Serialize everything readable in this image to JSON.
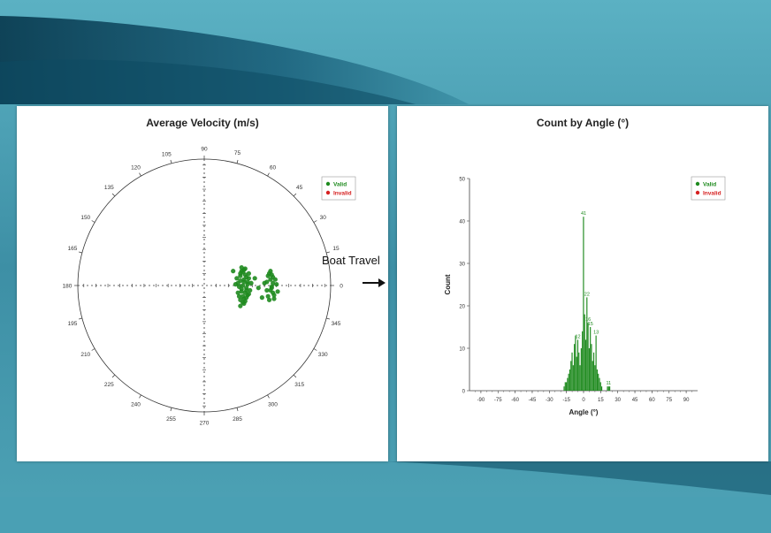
{
  "colors": {
    "valid": "#1e8a1e",
    "invalid": "#d62020",
    "background": "#4a9bb0"
  },
  "annotation": {
    "boat_travel": "Boat Travel"
  },
  "chart_data": [
    {
      "type": "scatter",
      "title": "Average Velocity (m/s)",
      "coordinate_system": "polar",
      "grid": true,
      "legend": {
        "position": "top-right",
        "entries": [
          "Valid",
          "Invalid"
        ]
      },
      "angle_labels": [
        {
          "deg": 0,
          "text": "90"
        },
        {
          "deg": 14,
          "text": "75"
        },
        {
          "deg": 30,
          "text": "60"
        },
        {
          "deg": 44,
          "text": "45"
        },
        {
          "deg": 60,
          "text": "30"
        },
        {
          "deg": 74,
          "text": "15"
        },
        {
          "deg": 90,
          "text": "0"
        },
        {
          "deg": 106,
          "text": "345"
        },
        {
          "deg": 120,
          "text": "330"
        },
        {
          "deg": 136,
          "text": "315"
        },
        {
          "deg": 150,
          "text": "300"
        },
        {
          "deg": 166,
          "text": "285"
        },
        {
          "deg": 180,
          "text": "270"
        },
        {
          "deg": 194,
          "text": "255"
        },
        {
          "deg": 210,
          "text": "240"
        },
        {
          "deg": 224,
          "text": "225"
        },
        {
          "deg": 240,
          "text": "210"
        },
        {
          "deg": 254,
          "text": "195"
        },
        {
          "deg": 270,
          "text": "180"
        },
        {
          "deg": 286,
          "text": "165"
        },
        {
          "deg": 300,
          "text": "150"
        },
        {
          "deg": 316,
          "text": "135"
        },
        {
          "deg": 330,
          "text": "120"
        },
        {
          "deg": 344,
          "text": "105"
        }
      ],
      "series": [
        {
          "name": "Valid",
          "x": [
            0.28,
            0.31,
            0.33,
            0.3,
            0.34,
            0.36,
            0.29,
            0.32,
            0.35,
            0.37,
            0.3,
            0.33,
            0.31,
            0.34,
            0.38,
            0.27,
            0.32,
            0.36,
            0.3,
            0.33,
            0.35,
            0.29,
            0.31,
            0.34,
            0.37,
            0.32,
            0.3,
            0.36,
            0.33,
            0.28,
            0.35,
            0.31,
            0.39,
            0.26,
            0.34,
            0.32,
            0.3,
            0.37,
            0.33,
            0.35,
            0.52,
            0.55,
            0.57,
            0.54,
            0.58,
            0.56,
            0.53,
            0.59,
            0.55,
            0.57,
            0.54,
            0.6,
            0.56,
            0.53,
            0.58,
            0.55,
            0.57,
            0.61,
            0.52,
            0.56,
            0.48,
            0.5,
            0.45,
            0.24,
            0.42
          ],
          "y": [
            0.02,
            -0.03,
            0.05,
            0.08,
            -0.06,
            0.01,
            -0.09,
            0.11,
            -0.02,
            0.06,
            0.04,
            -0.11,
            -0.05,
            0.09,
            -0.04,
            0.06,
            0.0,
            -0.08,
            -0.12,
            0.13,
            0.07,
            -0.01,
            0.12,
            -0.13,
            -0.07,
            -0.09,
            0.1,
            0.03,
            -0.15,
            -0.06,
            -0.1,
            0.15,
            0.02,
            0.01,
            0.14,
            -0.14,
            -0.17,
            0.1,
            0.03,
            -0.04,
            0.03,
            -0.04,
            0.07,
            0.1,
            -0.08,
            -0.01,
            -0.09,
            0.05,
            0.12,
            -0.06,
            -0.12,
            0.01,
            -0.02,
            0.08,
            -0.11,
            0.05,
            0.02,
            -0.05,
            -0.04,
            0.09,
            -0.1,
            0.02,
            -0.02,
            0.12,
            0.06
          ]
        },
        {
          "name": "Invalid",
          "x": [],
          "y": []
        }
      ]
    },
    {
      "type": "bar",
      "title": "Count by Angle (°)",
      "xlabel": "Angle (°)",
      "ylabel": "Count",
      "xlim": [
        -100,
        100
      ],
      "ylim": [
        0,
        50
      ],
      "xticks": [
        "-90",
        "-75",
        "-60",
        "-45",
        "-30",
        "-15",
        "0",
        "15",
        "30",
        "45",
        "60",
        "75",
        "90"
      ],
      "yticks": [
        "0",
        "10",
        "20",
        "30",
        "40",
        "50"
      ],
      "grid": false,
      "legend": {
        "position": "top-right",
        "entries": [
          "Valid",
          "Invalid"
        ]
      },
      "series": [
        {
          "name": "Valid",
          "x": [
            -17,
            -16,
            -15,
            -14,
            -13,
            -12,
            -11,
            -10,
            -9,
            -8,
            -7,
            -6,
            -5,
            -4,
            -3,
            -2,
            -1,
            0,
            1,
            2,
            3,
            4,
            5,
            6,
            7,
            8,
            9,
            10,
            11,
            12,
            13,
            14,
            15,
            16,
            17,
            18,
            19,
            21,
            22,
            23
          ],
          "values": [
            1,
            2,
            2,
            3,
            4,
            5,
            7,
            9,
            6,
            11,
            13,
            8,
            12,
            9,
            6,
            10,
            14,
            41,
            18,
            12,
            22,
            16,
            10,
            15,
            11,
            7,
            9,
            6,
            13,
            5,
            4,
            3,
            2,
            1,
            0,
            0,
            0,
            1,
            1,
            1
          ]
        },
        {
          "name": "Invalid",
          "x": [],
          "values": []
        }
      ],
      "data_labels": [
        {
          "x": 0,
          "text": "41"
        },
        {
          "x": -5,
          "text": "12"
        },
        {
          "x": 3,
          "text": "22"
        },
        {
          "x": 4,
          "text": "16"
        },
        {
          "x": 6,
          "text": "15"
        },
        {
          "x": 11,
          "text": "13"
        },
        {
          "x": 21,
          "text": "1"
        },
        {
          "x": 23,
          "text": "1"
        }
      ]
    }
  ]
}
